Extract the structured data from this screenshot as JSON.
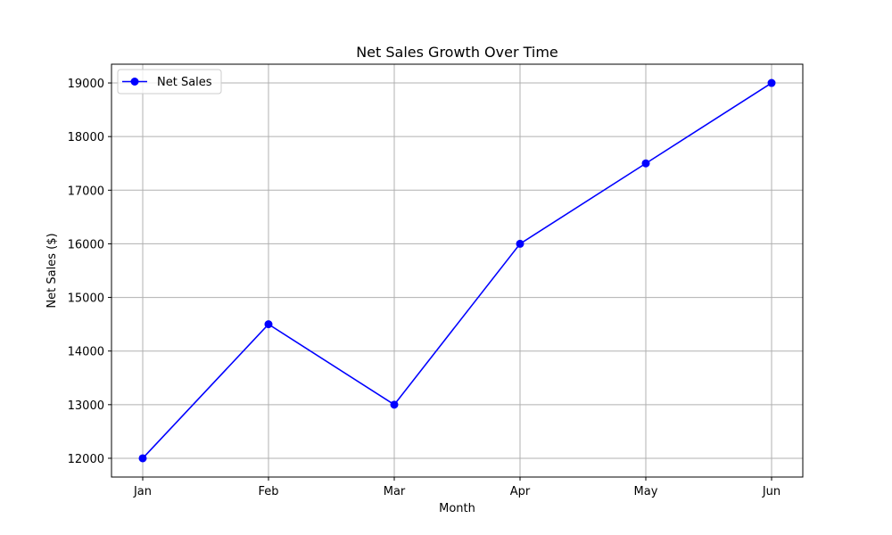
{
  "chart_data": {
    "type": "line",
    "title": "Net Sales Growth Over Time",
    "xlabel": "Month",
    "ylabel": "Net Sales ($)",
    "categories": [
      "Jan",
      "Feb",
      "Mar",
      "Apr",
      "May",
      "Jun"
    ],
    "series": [
      {
        "name": "Net Sales",
        "values": [
          12000,
          14500,
          13000,
          16000,
          17500,
          19000
        ],
        "color": "#0000ff",
        "marker": "circle"
      }
    ],
    "yticks": [
      12000,
      13000,
      14000,
      15000,
      16000,
      17000,
      18000,
      19000
    ],
    "ylim": [
      11650,
      19350
    ],
    "grid": true,
    "legend_position": "upper-left"
  }
}
